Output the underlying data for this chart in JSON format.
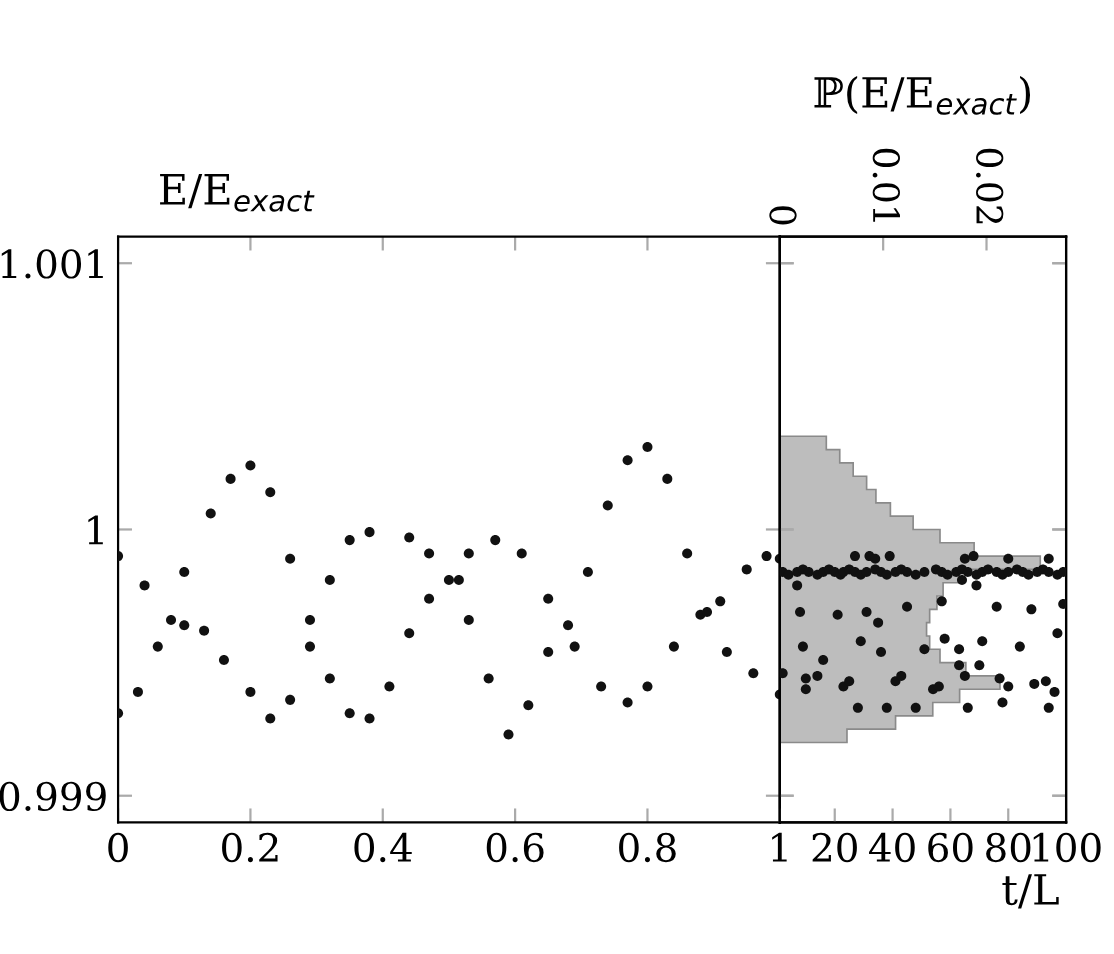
{
  "chart_data": [
    {
      "type": "scatter",
      "ylabel": "E/E$_{exact}$",
      "xlim": [
        0,
        1
      ],
      "ylim": [
        0.9989,
        1.0011
      ],
      "xticks": [
        0,
        0.2,
        0.4,
        0.6,
        0.8,
        {
          "value": 1,
          "label": null
        }
      ],
      "yticks": [
        0.999,
        1,
        1.001
      ],
      "grid": false,
      "marker": "circle",
      "series": [
        {
          "color": "#111111",
          "x": [
            0,
            0.04,
            0.08,
            0.1,
            0.13,
            0.16,
            0.2,
            0.23,
            0.26,
            0.29,
            0.32,
            0.35,
            0.38,
            0.44,
            0.47,
            0.5,
            0.53,
            0.57,
            0.61,
            0.65,
            0.69,
            0.73,
            0.77,
            0.8,
            0.84,
            0.88,
            0.91,
            0.95,
            0.98,
            1.0
          ],
          "values": [
            0.9999,
            0.99979,
            0.99966,
            0.99964,
            0.99962,
            0.99951,
            0.99939,
            0.99929,
            0.99936,
            0.99956,
            0.99981,
            0.99996,
            0.99999,
            0.99997,
            0.99991,
            0.99981,
            0.99991,
            0.99996,
            0.99991,
            0.99974,
            0.99956,
            0.99941,
            0.99935,
            0.99941,
            0.99956,
            0.99968,
            0.99973,
            0.99985,
            0.9999,
            0.99989
          ]
        },
        {
          "color": "#111111",
          "x": [
            0,
            0.03,
            0.06,
            0.1,
            0.14,
            0.17,
            0.2,
            0.23,
            0.26,
            0.29,
            0.32,
            0.35,
            0.38,
            0.41,
            0.44,
            0.47,
            0.515,
            0.53,
            0.56,
            0.59,
            0.62,
            0.65,
            0.68,
            0.71,
            0.74,
            0.77,
            0.8,
            0.83,
            0.86,
            0.89,
            0.92,
            0.96,
            1.0
          ],
          "values": [
            0.99931,
            0.99939,
            0.99956,
            0.99984,
            1.00006,
            1.00019,
            1.00024,
            1.00014,
            0.99989,
            0.99966,
            0.99944,
            0.99931,
            0.99929,
            0.99941,
            0.99961,
            0.99974,
            0.99981,
            0.99966,
            0.99944,
            0.99923,
            0.99934,
            0.99954,
            0.99964,
            0.99984,
            1.00009,
            1.00026,
            1.00031,
            1.00019,
            0.99991,
            0.99969,
            0.99954,
            0.99946,
            0.99938
          ]
        }
      ]
    },
    {
      "type": "histogram",
      "orientation": "horizontal",
      "xlabel": "ℙ(E/E$_{exact}$)",
      "xlim": [
        0,
        0.0277
      ],
      "xticks": [
        0,
        0.01,
        0.02
      ],
      "ylim": [
        0.9989,
        1.0011
      ],
      "yticks": [
        {
          "value": 0.999,
          "label": null
        },
        {
          "value": 1,
          "label": null
        },
        {
          "value": 1.001,
          "label": null
        }
      ],
      "tick_labels": "x",
      "color": "#bdbdbd",
      "bins": [
        0.9992,
        0.99925,
        0.9993,
        0.99935,
        0.9994,
        0.99945,
        0.9995,
        0.99955,
        0.9996,
        0.99965,
        0.9997,
        0.99975,
        0.9998,
        0.99985,
        0.9999,
        0.99995,
        1.0,
        1.00005,
        1.0001,
        1.00015,
        1.0002,
        1.00025,
        1.0003,
        1.00035
      ],
      "values": [
        0.0065,
        0.0112,
        0.0148,
        0.0174,
        0.0213,
        0.018,
        0.0155,
        0.0145,
        0.0142,
        0.0145,
        0.0152,
        0.0158,
        0.0174,
        0.0252,
        0.0188,
        0.0155,
        0.0129,
        0.0107,
        0.0093,
        0.0084,
        0.0071,
        0.0058,
        0.0045
      ]
    },
    {
      "type": "scatter",
      "xlabel": "t/L",
      "xlim": [
        1,
        100
      ],
      "xticks": [
        1,
        20,
        40,
        60,
        80,
        100
      ],
      "ylim": [
        0.9989,
        1.0011
      ],
      "yticks": [
        {
          "value": 0.999,
          "label": null
        },
        {
          "value": 1,
          "label": null
        },
        {
          "value": 1.001,
          "label": null
        }
      ],
      "tick_labels": "x",
      "grid": false,
      "marker": "circle",
      "series": [
        {
          "color": "#111111",
          "x": [
            2,
            4,
            7,
            9,
            11,
            14,
            16,
            18,
            20,
            22,
            23,
            25,
            27,
            29,
            31,
            34,
            36,
            38,
            41,
            43,
            45,
            48,
            51,
            55,
            57,
            59,
            62,
            64,
            66,
            69,
            71,
            73,
            76,
            78,
            80,
            83,
            85,
            87,
            90,
            92,
            94,
            97,
            99,
            27,
            32,
            39,
            34,
            65,
            68,
            80,
            94,
            7,
            8,
            21,
            31,
            35,
            45,
            57,
            64,
            69,
            76,
            88,
            99,
            9,
            16,
            29,
            36,
            51,
            58,
            63,
            71,
            84,
            97,
            2,
            10,
            14,
            23,
            25,
            41,
            43,
            54,
            56,
            63,
            65,
            70,
            77,
            80,
            89,
            93,
            96,
            28,
            38,
            48,
            66,
            78,
            94,
            10
          ],
          "values": [
            0.99984,
            0.99983,
            0.99984,
            0.99985,
            0.99984,
            0.99983,
            0.99984,
            0.99985,
            0.99984,
            0.99983,
            0.99984,
            0.99985,
            0.99984,
            0.99983,
            0.99984,
            0.99985,
            0.99984,
            0.99983,
            0.99984,
            0.99985,
            0.99984,
            0.99983,
            0.99984,
            0.99985,
            0.99984,
            0.99983,
            0.99984,
            0.99985,
            0.99984,
            0.99983,
            0.99984,
            0.99985,
            0.99984,
            0.99983,
            0.99984,
            0.99985,
            0.99984,
            0.99983,
            0.99984,
            0.99985,
            0.99984,
            0.99983,
            0.99984,
            0.9999,
            0.9999,
            0.9999,
            0.99989,
            0.99989,
            0.9999,
            0.99989,
            0.99989,
            0.99979,
            0.99969,
            0.99968,
            0.99969,
            0.99965,
            0.99971,
            0.99973,
            0.99981,
            0.99979,
            0.99971,
            0.9997,
            0.99972,
            0.99956,
            0.99951,
            0.99958,
            0.99954,
            0.99955,
            0.99959,
            0.99955,
            0.99958,
            0.99956,
            0.99961,
            0.99946,
            0.99944,
            0.99945,
            0.99941,
            0.99943,
            0.99943,
            0.99945,
            0.9994,
            0.99941,
            0.99949,
            0.99945,
            0.99949,
            0.99944,
            0.99941,
            0.99942,
            0.99943,
            0.99939,
            0.99933,
            0.99933,
            0.99933,
            0.99933,
            0.99935,
            0.99933,
            0.9994
          ]
        }
      ]
    }
  ]
}
